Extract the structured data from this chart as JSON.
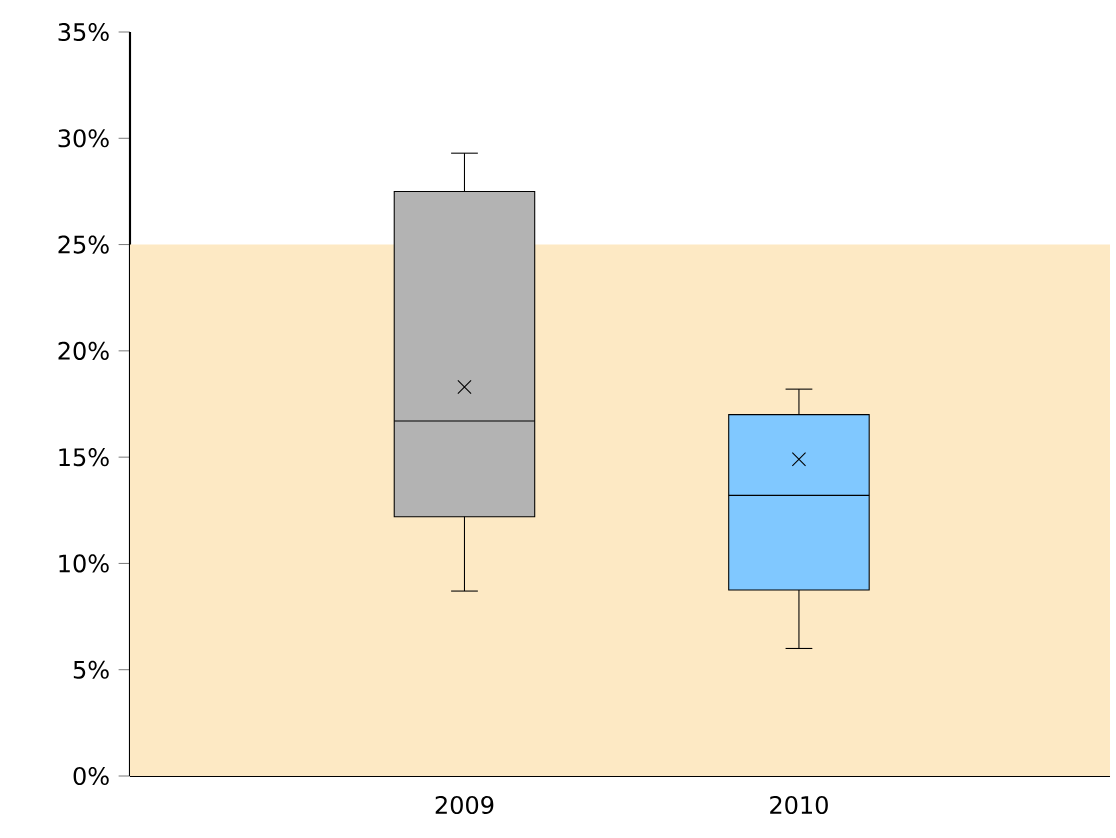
{
  "chart_data": {
    "type": "box",
    "categories": [
      "2009",
      "2010"
    ],
    "colors": [
      "#b3b3b3",
      "#80c8ff"
    ],
    "boxes": [
      {
        "low": 8.7,
        "q1": 12.2,
        "median": 16.7,
        "q3": 27.5,
        "high": 29.3,
        "mean": 18.3
      },
      {
        "low": 6.0,
        "q1": 8.75,
        "median": 13.2,
        "q3": 17.0,
        "high": 18.2,
        "mean": 14.9
      }
    ],
    "ylim": [
      0,
      35
    ],
    "yticks": [
      {
        "value": 0,
        "label": "0%"
      },
      {
        "value": 5,
        "label": "5%"
      },
      {
        "value": 10,
        "label": "10%"
      },
      {
        "value": 15,
        "label": "15%"
      },
      {
        "value": 20,
        "label": "20%"
      },
      {
        "value": 25,
        "label": "25%"
      },
      {
        "value": 30,
        "label": "30%"
      },
      {
        "value": 35,
        "label": "35%"
      }
    ],
    "bands": [
      {
        "axis": "y",
        "from": 0,
        "to": 25,
        "color": "#fde9c4"
      }
    ]
  }
}
